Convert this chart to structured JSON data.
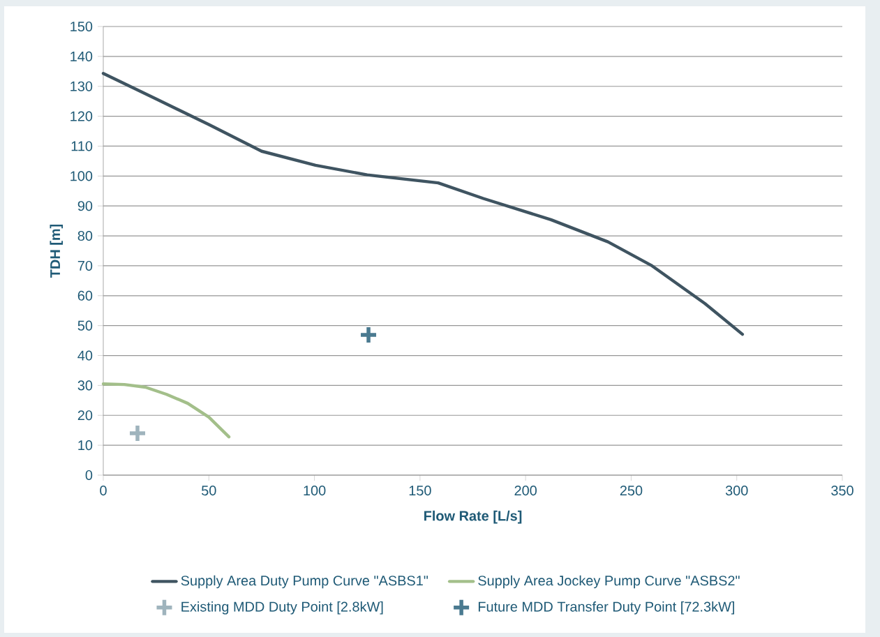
{
  "chart_data": {
    "type": "line",
    "xlabel": "Flow Rate [L/s]",
    "ylabel": "TDH [m]",
    "xlim": [
      0,
      350
    ],
    "ylim": [
      0,
      150
    ],
    "xticks": [
      0,
      50,
      100,
      150,
      200,
      250,
      300,
      350
    ],
    "yticks": [
      0,
      10,
      20,
      30,
      40,
      50,
      60,
      70,
      80,
      90,
      100,
      110,
      120,
      130,
      140,
      150
    ],
    "grid": "y",
    "legend": "bottom",
    "series": [
      {
        "name": "Supply Area Duty Pump Curve \"ASBS1\"",
        "marker": "none",
        "color": "#3f5461",
        "x": [
          0,
          25,
          50,
          75,
          100.5,
          125,
          158.6,
          180,
          212,
          239,
          259.4,
          284.9,
          302.7
        ],
        "values": [
          134.3,
          125.8,
          117.2,
          108.3,
          103.6,
          100.4,
          97.7,
          92.5,
          85.4,
          78,
          70.2,
          57.4,
          47.1
        ]
      },
      {
        "name": "Supply Area Jockey Pump Curve \"ASBS2\"",
        "marker": "none",
        "color": "#a3bf8a",
        "x": [
          0,
          10,
          20,
          30,
          40,
          50,
          59.5
        ],
        "values": [
          30.5,
          30.3,
          29.4,
          27,
          24,
          19.4,
          12.8
        ]
      },
      {
        "name": "Existing MDD Duty Point [2.8kW]",
        "type": "scatter",
        "marker": "cross",
        "color": "#9fb4bd",
        "x": [
          16.2
        ],
        "values": [
          14
        ]
      },
      {
        "name": "Future MDD Transfer Duty Point [72.3kW]",
        "type": "scatter",
        "marker": "cross",
        "color": "#4a7a90",
        "x": [
          125.6
        ],
        "values": [
          46.9
        ]
      }
    ]
  }
}
